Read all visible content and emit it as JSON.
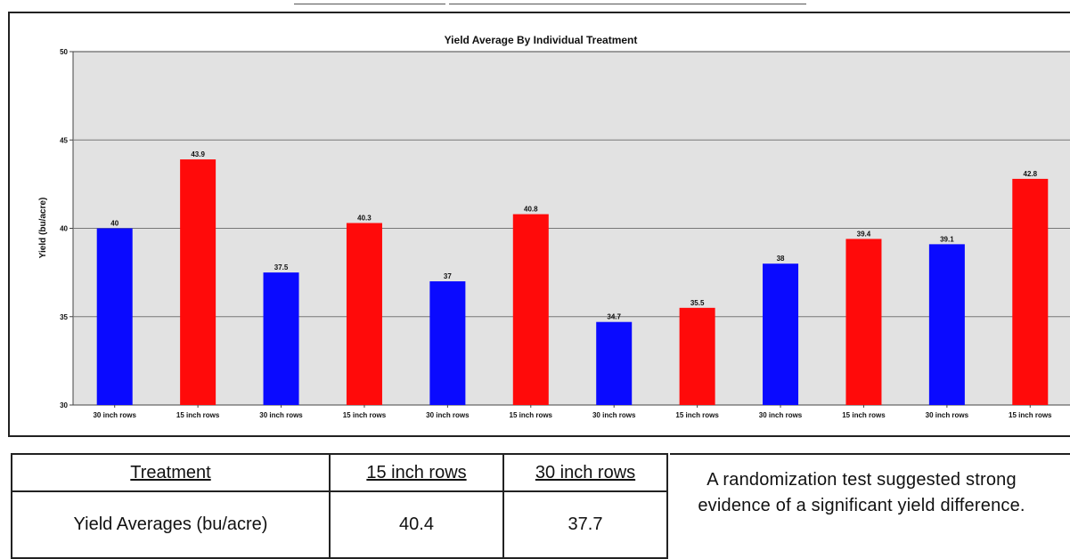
{
  "chart_data": {
    "type": "bar",
    "title": "Yield Average By Individual Treatment",
    "xlabel": "",
    "ylabel": "Yield (bu/acre)",
    "ylim": [
      30,
      50
    ],
    "yticks": [
      30,
      35,
      40,
      45,
      50
    ],
    "grid": true,
    "legend": "none",
    "categories": [
      "30 inch rows",
      "15 inch rows",
      "30 inch rows",
      "15 inch rows",
      "30 inch rows",
      "15 inch rows",
      "30 inch rows",
      "15 inch rows",
      "30 inch rows",
      "15 inch rows",
      "30 inch rows",
      "15 inch rows"
    ],
    "values": [
      40,
      43.9,
      37.5,
      40.3,
      37,
      40.8,
      34.7,
      35.5,
      38,
      39.4,
      39.1,
      42.8
    ],
    "bar_colors": [
      "#0a0aff",
      "#ff0a0a",
      "#0a0aff",
      "#ff0a0a",
      "#0a0aff",
      "#ff0a0a",
      "#0a0aff",
      "#ff0a0a",
      "#0a0aff",
      "#ff0a0a",
      "#0a0aff",
      "#ff0a0a"
    ],
    "plot_background": "#e2e2e2"
  },
  "table": {
    "header": {
      "treatment": "Treatment",
      "col15": "15 inch rows",
      "col30": "30 inch rows"
    },
    "row": {
      "label": "Yield Averages (bu/acre)",
      "val15": "40.4",
      "val30": "37.7"
    },
    "note": "A randomization test suggested strong evidence of a significant yield difference."
  }
}
